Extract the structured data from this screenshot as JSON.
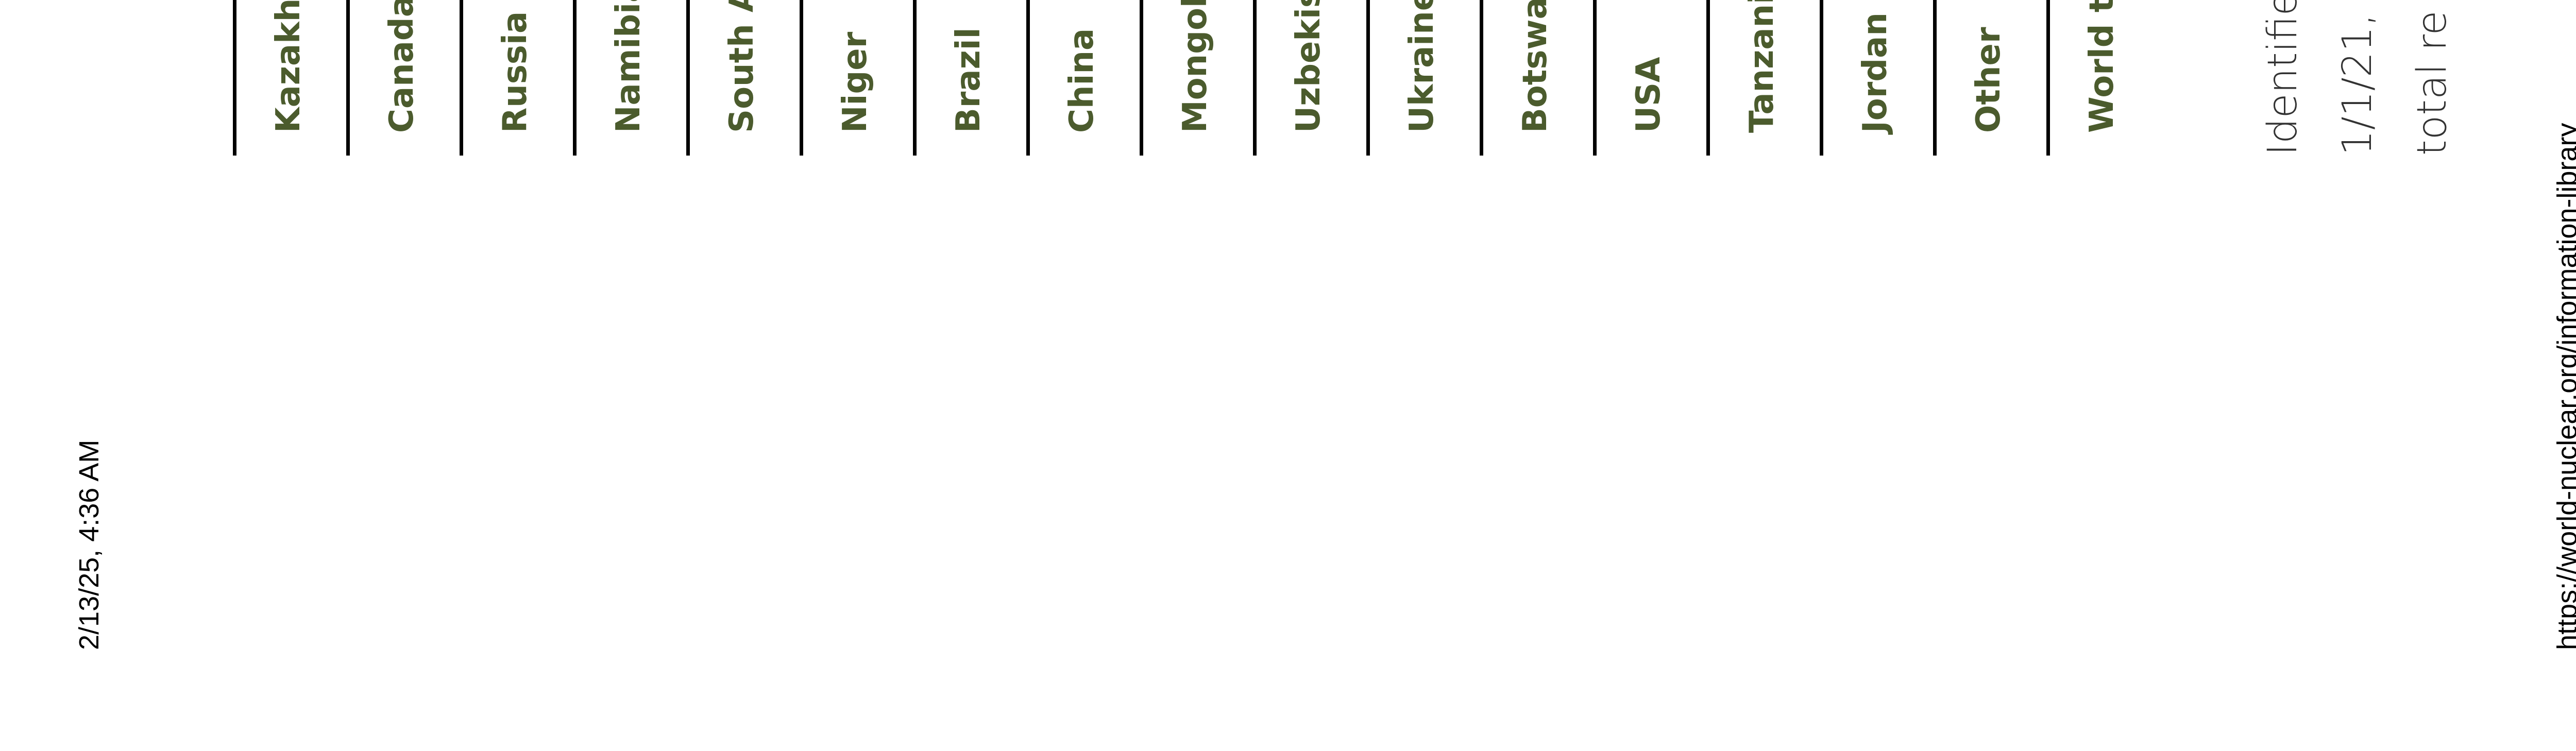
{
  "print_header": {
    "date_time": "2/13/25, 4:36 AM"
  },
  "print_footer": {
    "url": "https://world-nuclear.org/information-library"
  },
  "table": {
    "countries": [
      "Kazakhstan",
      "Canada",
      "Russia",
      "Namibia",
      "South Africa",
      "Niger",
      "Brazil",
      "China",
      "Mongolia",
      "Uzbekistan",
      "Ukraine",
      "Botswana",
      "USA",
      "Tanzania",
      "Jordan",
      "Other",
      "World total"
    ]
  },
  "notes": {
    "lines": [
      "Identified",
      "1/1/21,",
      "total re"
    ]
  }
}
